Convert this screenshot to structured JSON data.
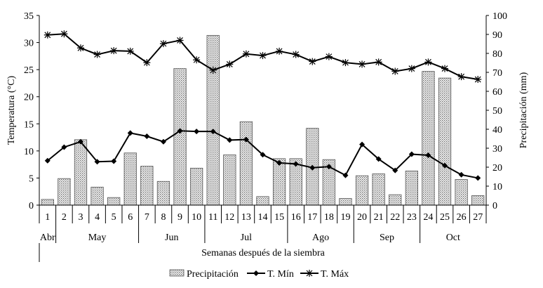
{
  "chart_data": {
    "type": "bar+line",
    "title": "",
    "xlabel": "Semanas después de la siembra",
    "ylabel_left": "Temperatura (°C)",
    "ylabel_right": "Precipitación (mm)",
    "ylim_left": [
      0,
      35
    ],
    "ylim_right": [
      0,
      100
    ],
    "yticks_left": [
      "0",
      "5",
      "10",
      "15",
      "20",
      "25",
      "30",
      "35"
    ],
    "yticks_right": [
      "0",
      "10",
      "20",
      "30",
      "40",
      "50",
      "60",
      "70",
      "80",
      "90",
      "100"
    ],
    "categories": [
      "1",
      "2",
      "3",
      "4",
      "5",
      "6",
      "7",
      "8",
      "9",
      "10",
      "11",
      "12",
      "13",
      "14",
      "15",
      "16",
      "17",
      "18",
      "19",
      "20",
      "21",
      "22",
      "23",
      "24",
      "25",
      "26",
      "27"
    ],
    "months": [
      {
        "label": "Abr",
        "from": 1,
        "to": 1
      },
      {
        "label": "May",
        "from": 2,
        "to": 6
      },
      {
        "label": "Jun",
        "from": 7,
        "to": 10
      },
      {
        "label": "Jul",
        "from": 11,
        "to": 15
      },
      {
        "label": "Ago",
        "from": 16,
        "to": 19
      },
      {
        "label": "Sep",
        "from": 20,
        "to": 23
      },
      {
        "label": "Oct",
        "from": 24,
        "to": 27
      }
    ],
    "grid": false,
    "legend_position": "bottom",
    "series": [
      {
        "name": "Precipitación",
        "type": "bar",
        "axis": "right",
        "values": [
          3,
          14,
          34.5,
          9.5,
          4,
          27.5,
          20.5,
          12.5,
          72,
          19.5,
          89.5,
          26.5,
          44,
          4.5,
          24.5,
          24.5,
          40.5,
          24,
          3.5,
          15.5,
          16.5,
          5.5,
          18,
          70.5,
          67,
          13.5,
          5
        ]
      },
      {
        "name": "T. Mín",
        "type": "line",
        "axis": "left",
        "marker": "diamond",
        "values": [
          8.2,
          10.7,
          11.7,
          8.0,
          8.1,
          13.3,
          12.7,
          11.7,
          13.7,
          13.6,
          13.6,
          12.0,
          12.1,
          9.3,
          7.8,
          7.6,
          6.9,
          7.1,
          5.5,
          11.2,
          8.5,
          6.4,
          9.4,
          9.2,
          7.3,
          5.6,
          5.0
        ]
      },
      {
        "name": "T. Máx",
        "type": "line",
        "axis": "left",
        "marker": "asterisk",
        "values": [
          31.4,
          31.6,
          29.0,
          27.8,
          28.5,
          28.4,
          26.3,
          29.8,
          30.4,
          26.8,
          24.9,
          26.0,
          27.9,
          27.6,
          28.4,
          27.8,
          26.5,
          27.4,
          26.3,
          26.0,
          26.4,
          24.7,
          25.2,
          26.4,
          25.2,
          23.7,
          23.2
        ]
      }
    ]
  }
}
